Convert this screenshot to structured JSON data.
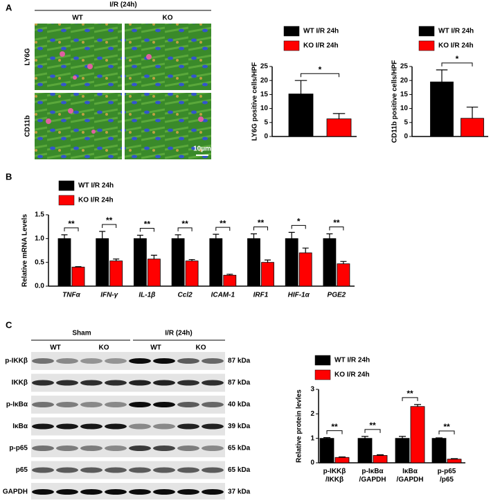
{
  "panel_a": {
    "label": "A",
    "header": "I/R (24h)",
    "columns": [
      "WT",
      "KO"
    ],
    "rows": [
      "LY6G",
      "CD11b"
    ],
    "scale_bar": "10µm"
  },
  "panel_b": {
    "label": "B"
  },
  "panel_c": {
    "label": "C",
    "groups": [
      "Sham",
      "I/R (24h)"
    ],
    "columns": [
      "WT",
      "KO",
      "WT",
      "KO"
    ],
    "blots": [
      {
        "label": "p-IKKβ",
        "size": "87 kDa"
      },
      {
        "label": "IKKβ",
        "size": "87 kDa"
      },
      {
        "label": "p-IκBα",
        "size": "40 kDa"
      },
      {
        "label": "IκBα",
        "size": "39 kDa"
      },
      {
        "label": "p-p65",
        "size": "65 kDa"
      },
      {
        "label": "p65",
        "size": "65 kDa"
      },
      {
        "label": "GAPDH",
        "size": "37 kDa"
      }
    ]
  },
  "chart_data": [
    {
      "type": "bar",
      "y_label": "LY6G positive cells/HPF",
      "categories": [
        null
      ],
      "series": [
        {
          "name": "WT I/R 24h",
          "color": "#000000",
          "values": [
            15.2
          ],
          "errors": [
            4.8
          ]
        },
        {
          "name": "KO I/R 24h",
          "color": "#ff0000",
          "values": [
            6.3
          ],
          "errors": [
            1.9
          ]
        }
      ],
      "ylim": [
        0,
        25
      ],
      "yticks": [
        0,
        5,
        10,
        15,
        20,
        25
      ],
      "significance": [
        "*"
      ]
    },
    {
      "type": "bar",
      "y_label": "CD11b positive cells/HPF",
      "categories": [
        null
      ],
      "series": [
        {
          "name": "WT I/R 24h",
          "color": "#000000",
          "values": [
            19.5
          ],
          "errors": [
            4.3
          ]
        },
        {
          "name": "KO I/R 24h",
          "color": "#ff0000",
          "values": [
            6.5
          ],
          "errors": [
            4.0
          ]
        }
      ],
      "ylim": [
        0,
        25
      ],
      "yticks": [
        0,
        5,
        10,
        15,
        20,
        25
      ],
      "significance": [
        "*"
      ]
    },
    {
      "type": "bar",
      "y_label": "Relative mRNA Levels",
      "categories": [
        "TNFα",
        "IFN-γ",
        "IL-1β",
        "Ccl2",
        "ICAM-1",
        "IRF1",
        "HIF-1α",
        "PGE2"
      ],
      "series": [
        {
          "name": "WT I/R 24h",
          "color": "#000000",
          "values": [
            1.0,
            1.0,
            1.0,
            1.0,
            1.0,
            1.0,
            1.0,
            1.0
          ],
          "errors": [
            0.08,
            0.15,
            0.07,
            0.08,
            0.09,
            0.1,
            0.13,
            0.1
          ]
        },
        {
          "name": "KO I/R 24h",
          "color": "#ff0000",
          "values": [
            0.4,
            0.53,
            0.57,
            0.53,
            0.23,
            0.5,
            0.7,
            0.47
          ],
          "errors": [
            0.01,
            0.04,
            0.08,
            0.03,
            0.02,
            0.05,
            0.1,
            0.05
          ]
        }
      ],
      "ylim": [
        0,
        1.5
      ],
      "yticks": [
        {
          "value": 0,
          "label": "0.0"
        },
        {
          "value": 0.5,
          "label": "0.5"
        },
        {
          "value": 1,
          "label": "1.0"
        },
        {
          "value": 1.5,
          "label": "1.5"
        }
      ],
      "significance": [
        "**",
        "**",
        "**",
        "**",
        "**",
        "**",
        "*",
        "**"
      ]
    },
    {
      "type": "bar",
      "y_label": "Relative protein levles",
      "categories": [
        "p-IKKβ\n/IKKβ",
        "p-IκBα\n/GAPDH",
        "IκBα\n/GAPDH",
        "p-p65\n/p65"
      ],
      "series": [
        {
          "name": "WT I/R 24h",
          "color": "#000000",
          "values": [
            1.0,
            1.0,
            1.0,
            1.0
          ],
          "errors": [
            0.03,
            0.08,
            0.08,
            0.02
          ]
        },
        {
          "name": "KO I/R 24h",
          "color": "#ff0000",
          "values": [
            0.22,
            0.3,
            2.3,
            0.15
          ],
          "errors": [
            0.02,
            0.03,
            0.08,
            0.02
          ]
        }
      ],
      "ylim": [
        0,
        3
      ],
      "yticks": [
        0,
        1,
        2,
        3
      ],
      "significance": [
        "**",
        "**",
        "**",
        "**"
      ]
    }
  ]
}
